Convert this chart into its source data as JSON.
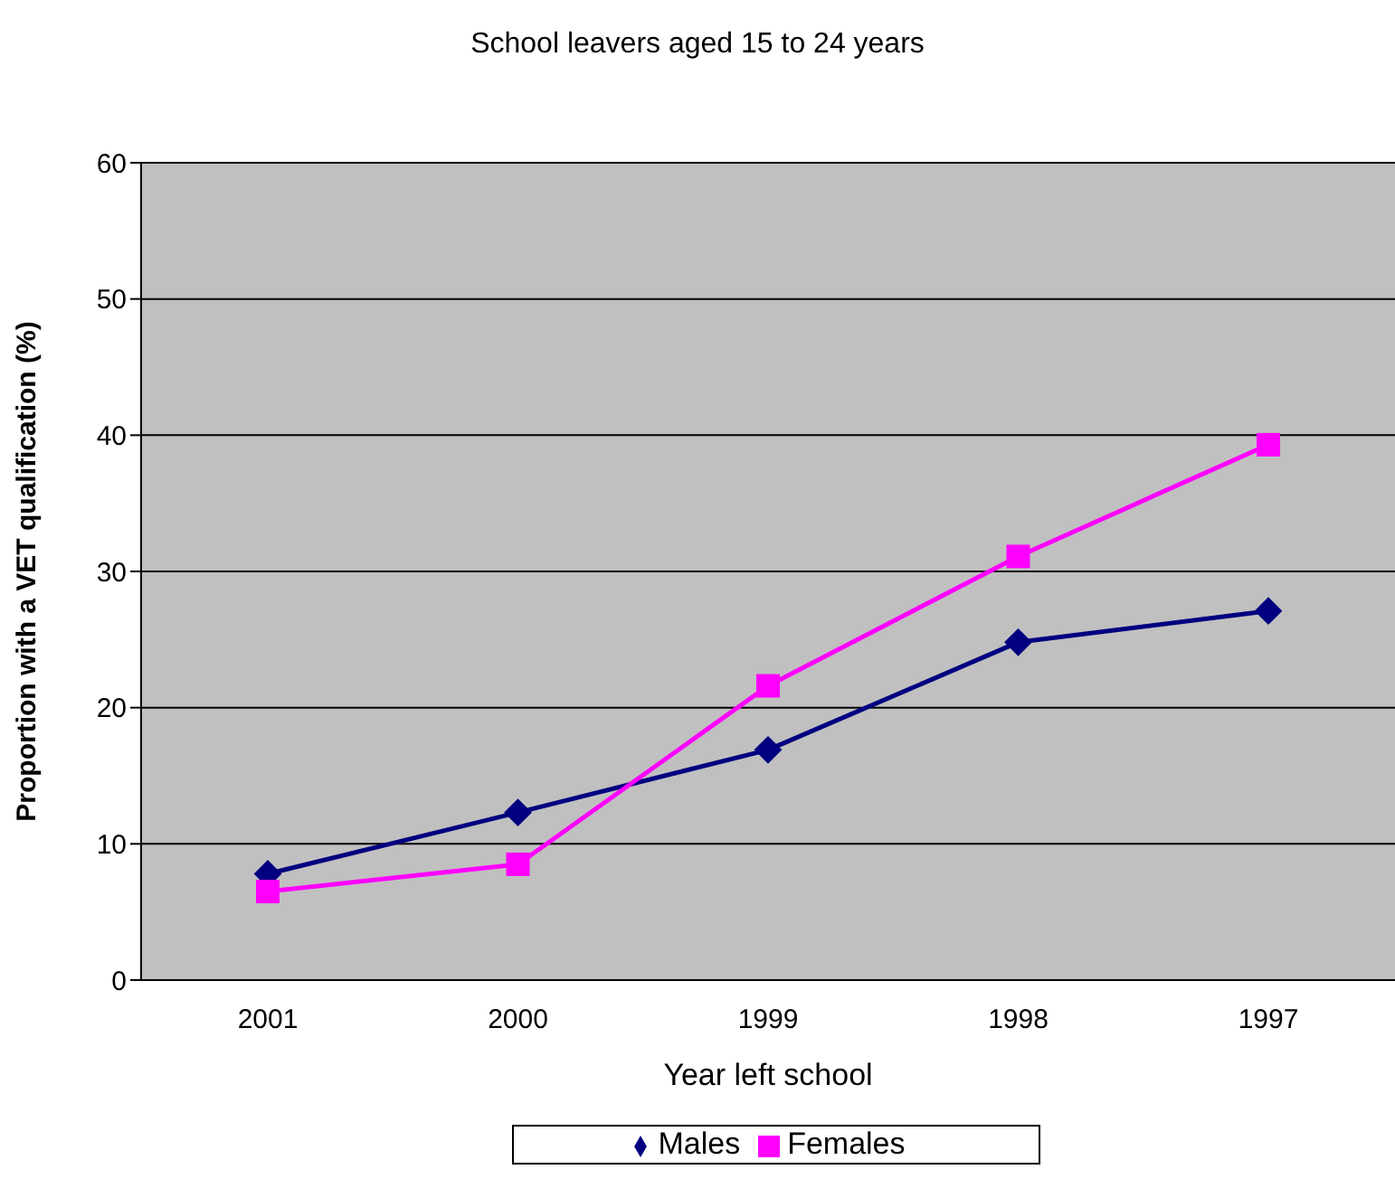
{
  "chart_data": {
    "type": "line",
    "title": "School leavers aged 15 to 24 years",
    "xlabel": "Year left school",
    "ylabel": "Proportion with a VET qualification (%)",
    "categories": [
      "2001",
      "2000",
      "1999",
      "1998",
      "1997"
    ],
    "series": [
      {
        "name": "Males",
        "color": "#000080",
        "marker": "diamond",
        "values": [
          7.8,
          12.3,
          16.9,
          24.8,
          27.1
        ]
      },
      {
        "name": "Females",
        "color": "#ff00ff",
        "marker": "square",
        "values": [
          6.5,
          8.5,
          21.6,
          31.1,
          39.3
        ]
      }
    ],
    "ylim": [
      0,
      60
    ],
    "yticks": [
      0,
      10,
      20,
      30,
      40,
      50,
      60
    ],
    "grid": "y",
    "legend": "bottom"
  }
}
